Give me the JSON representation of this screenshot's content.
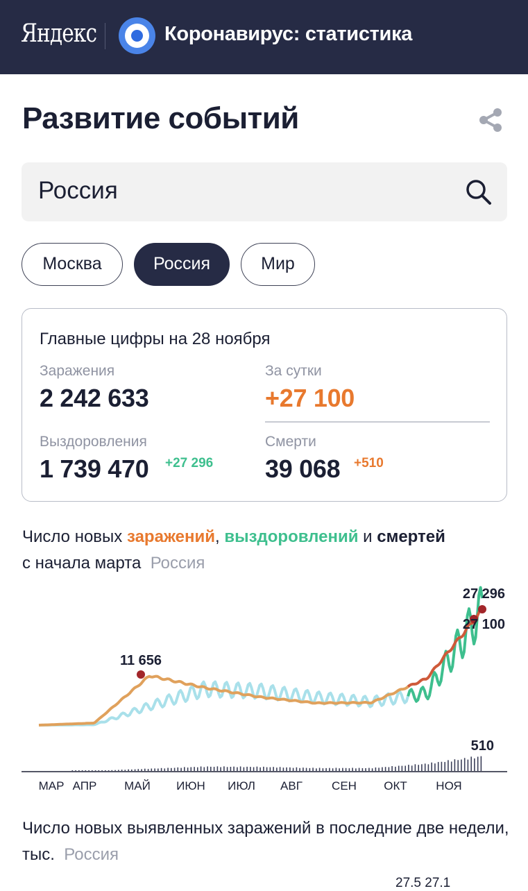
{
  "header": {
    "logo": "Яндекс",
    "title": "Коронавирус: статистика"
  },
  "page_title": "Развитие событий",
  "search": {
    "value": "Россия"
  },
  "chips": [
    {
      "label": "Москва",
      "active": false
    },
    {
      "label": "Россия",
      "active": true
    },
    {
      "label": "Мир",
      "active": false
    }
  ],
  "summary": {
    "heading": "Главные цифры на 28 ноября",
    "infections_label": "Заражения",
    "infections_value": "2 242 633",
    "daily_label": "За сутки",
    "daily_value": "+27 100",
    "recoveries_label": "Выздоровления",
    "recoveries_value": "1 739 470",
    "recoveries_delta": "+27 296",
    "deaths_label": "Смерти",
    "deaths_value": "39 068",
    "deaths_delta": "+510"
  },
  "chart_desc": {
    "prefix": "Число новых ",
    "infections": "заражений",
    "comma": ", ",
    "recoveries": "выздоровлений",
    "and": " и ",
    "deaths": "смертей",
    "line2": "с начала марта",
    "region": "Россия"
  },
  "colors": {
    "infections": "#e0a15c",
    "infections_recent": "#cf5a3a",
    "recoveries": "#a9e0ea",
    "recoveries_recent": "#3ebf8e",
    "deaths": "#3b3f58",
    "marker": "#a2262a"
  },
  "chart_data": {
    "type": "line",
    "x": [
      "МАР",
      "АПР",
      "МАЙ",
      "ИЮН",
      "ИЮЛ",
      "АВГ",
      "СЕН",
      "ОКТ",
      "НОЯ"
    ],
    "series": [
      {
        "name": "заражений",
        "values": [
          0,
          500,
          11656,
          8800,
          6600,
          5200,
          5300,
          11000,
          27100
        ]
      },
      {
        "name": "выздоровлений",
        "values": [
          0,
          100,
          4500,
          8500,
          8000,
          6500,
          5500,
          7500,
          27296
        ]
      },
      {
        "name": "смертей",
        "values": [
          0,
          5,
          80,
          150,
          140,
          100,
          100,
          250,
          510
        ]
      }
    ],
    "annotations": [
      "11 656",
      "27 296",
      "27 100",
      "510"
    ]
  },
  "section2": {
    "text": "Число новых выявленных заражений в последние две недели, тыс.",
    "region": "Россия",
    "footer_values": "27.5 27.1"
  }
}
